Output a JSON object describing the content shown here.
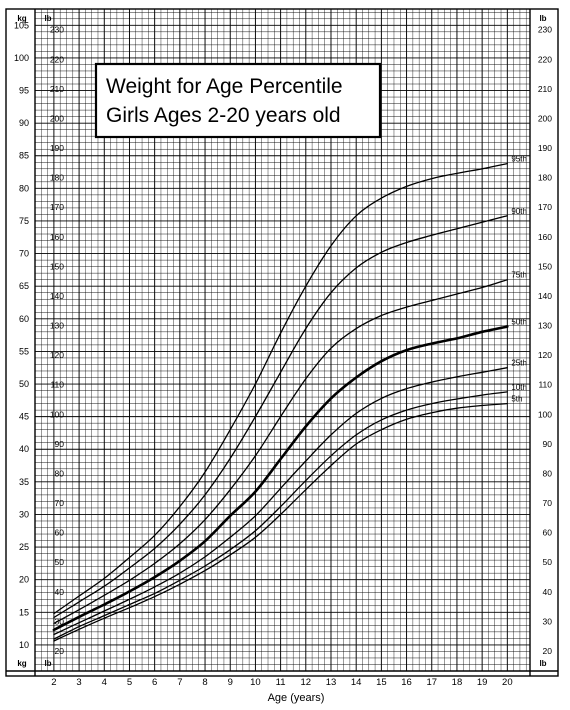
{
  "chart_data": {
    "type": "line",
    "title": "Weight for Age Percentile",
    "subtitle": "Girls Ages 2-20 years old",
    "xlabel": "Age (years)",
    "xlim": [
      2,
      20
    ],
    "x_ticks": [
      2,
      3,
      4,
      5,
      6,
      7,
      8,
      9,
      10,
      11,
      12,
      13,
      14,
      15,
      16,
      17,
      18,
      19,
      20
    ],
    "y_kg_range": [
      6,
      107.5
    ],
    "y_kg_ticks": [
      10,
      15,
      20,
      25,
      30,
      35,
      40,
      45,
      50,
      55,
      60,
      65,
      70,
      75,
      80,
      85,
      90,
      95,
      100,
      105
    ],
    "y_lb_ticks": [
      20,
      30,
      40,
      50,
      60,
      70,
      80,
      90,
      100,
      110,
      120,
      130,
      140,
      150,
      160,
      170,
      180,
      190,
      200,
      210,
      220,
      230
    ],
    "unit_kg": "kg",
    "unit_lb": "lb",
    "grid": true,
    "x": [
      2,
      3,
      4,
      5,
      6,
      7,
      8,
      9,
      10,
      11,
      12,
      13,
      14,
      15,
      16,
      17,
      18,
      19,
      20
    ],
    "series": [
      {
        "name": "95th",
        "values": [
          14.8,
          17.5,
          20.2,
          23.4,
          26.8,
          31.2,
          36.5,
          43.0,
          50.0,
          57.8,
          65.0,
          71.2,
          75.8,
          78.5,
          80.3,
          81.5,
          82.3,
          83.0,
          83.8
        ],
        "bold": false
      },
      {
        "name": "90th",
        "values": [
          14.2,
          16.6,
          19.0,
          21.8,
          24.8,
          28.5,
          33.0,
          38.6,
          45.0,
          51.8,
          58.5,
          64.0,
          67.8,
          70.2,
          71.7,
          72.8,
          73.8,
          74.8,
          75.8
        ],
        "bold": false
      },
      {
        "name": "75th",
        "values": [
          13.3,
          15.4,
          17.6,
          19.9,
          22.5,
          25.5,
          29.2,
          33.8,
          39.0,
          45.0,
          50.8,
          55.5,
          58.5,
          60.5,
          61.8,
          62.8,
          63.8,
          64.8,
          66.0
        ],
        "bold": false
      },
      {
        "name": "50th",
        "values": [
          12.3,
          14.3,
          16.2,
          18.2,
          20.4,
          22.9,
          25.9,
          29.8,
          33.5,
          38.5,
          43.5,
          47.8,
          51.0,
          53.5,
          55.2,
          56.2,
          57.0,
          58.0,
          58.8
        ],
        "bold": true
      },
      {
        "name": "25th",
        "values": [
          11.6,
          13.4,
          15.2,
          17.0,
          18.9,
          21.0,
          23.5,
          26.5,
          29.8,
          34.0,
          38.2,
          42.2,
          45.5,
          47.8,
          49.3,
          50.3,
          51.1,
          51.8,
          52.5
        ],
        "bold": false
      },
      {
        "name": "10th",
        "values": [
          10.9,
          12.8,
          14.5,
          16.2,
          17.9,
          19.9,
          22.1,
          24.6,
          27.5,
          31.2,
          35.2,
          39.0,
          42.2,
          44.5,
          46.0,
          47.0,
          47.7,
          48.3,
          48.8
        ],
        "bold": false
      },
      {
        "name": "5th",
        "values": [
          10.6,
          12.4,
          14.1,
          15.7,
          17.4,
          19.3,
          21.4,
          23.8,
          26.5,
          30.0,
          33.8,
          37.5,
          40.8,
          43.0,
          44.6,
          45.6,
          46.3,
          46.7,
          47.0
        ],
        "bold": false
      }
    ]
  }
}
